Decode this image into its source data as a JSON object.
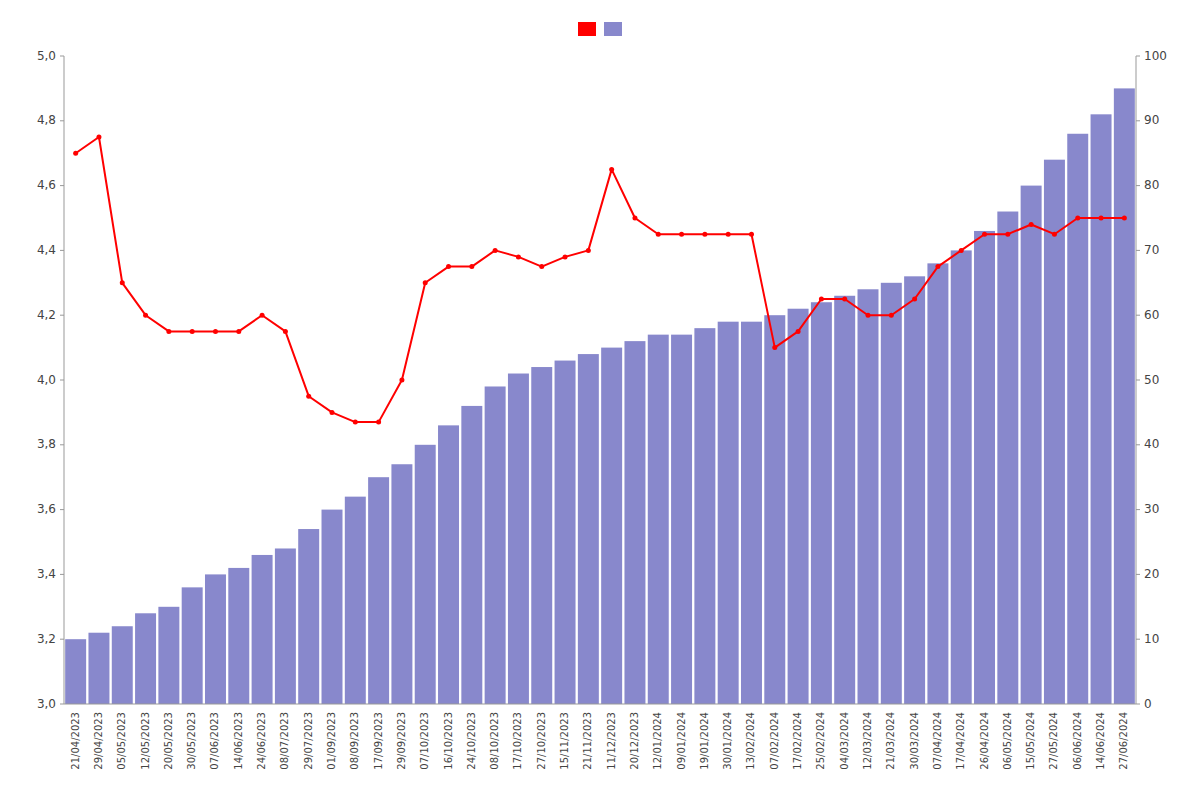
{
  "chart_data": {
    "type": "combo",
    "categories": [
      "21/04/2023",
      "29/04/2023",
      "05/05/2023",
      "12/05/2023",
      "20/05/2023",
      "30/05/2023",
      "07/06/2023",
      "14/06/2023",
      "24/06/2023",
      "08/07/2023",
      "29/07/2023",
      "01/09/2023",
      "08/09/2023",
      "17/09/2023",
      "29/09/2023",
      "07/10/2023",
      "16/10/2023",
      "24/10/2023",
      "08/10/2023",
      "17/10/2023",
      "27/10/2023",
      "15/11/2023",
      "21/11/2023",
      "11/12/2023",
      "20/12/2023",
      "12/01/2024",
      "09/01/2024",
      "19/01/2024",
      "30/01/2024",
      "13/02/2024",
      "07/02/2024",
      "17/02/2024",
      "25/02/2024",
      "04/03/2024",
      "12/03/2024",
      "21/03/2024",
      "30/03/2024",
      "07/04/2024",
      "17/04/2024",
      "26/04/2024",
      "06/05/2024",
      "15/05/2024",
      "27/05/2024",
      "06/06/2024",
      "14/06/2024",
      "27/06/2024"
    ],
    "series": [
      {
        "type": "line",
        "color": "#ff0000",
        "marker": "circle",
        "values": [
          4.7,
          4.75,
          4.3,
          4.2,
          4.15,
          4.15,
          4.15,
          4.15,
          4.2,
          4.15,
          3.95,
          3.9,
          3.87,
          3.87,
          4.0,
          4.3,
          4.35,
          4.35,
          4.4,
          4.38,
          4.35,
          4.38,
          4.4,
          4.65,
          4.5,
          4.45,
          4.45,
          4.45,
          4.45,
          4.45,
          4.1,
          4.15,
          4.25,
          4.25,
          4.2,
          4.2,
          4.25,
          4.35,
          4.4,
          4.45,
          4.45,
          4.48,
          4.45,
          4.5,
          4.5,
          4.5
        ]
      },
      {
        "type": "bar",
        "color": "#8888cc",
        "axis": "y2",
        "values": [
          10,
          11,
          12,
          14,
          15,
          18,
          20,
          21,
          23,
          24,
          27,
          30,
          32,
          35,
          37,
          40,
          43,
          46,
          49,
          51,
          52,
          53,
          54,
          55,
          56,
          57,
          57,
          58,
          59,
          59,
          60,
          61,
          62,
          63,
          64,
          65,
          66,
          68,
          70,
          73,
          76,
          80,
          84,
          88,
          91,
          95
        ]
      }
    ],
    "ylim": [
      3.0,
      5.0
    ],
    "yticks": [
      {
        "value": 3.0,
        "label": "3,0"
      },
      {
        "value": 3.2,
        "label": "3,2"
      },
      {
        "value": 3.4,
        "label": "3,4"
      },
      {
        "value": 3.6,
        "label": "3,6"
      },
      {
        "value": 3.8,
        "label": "3,8"
      },
      {
        "value": 4.0,
        "label": "4,0"
      },
      {
        "value": 4.2,
        "label": "4,2"
      },
      {
        "value": 4.4,
        "label": "4,4"
      },
      {
        "value": 4.6,
        "label": "4,6"
      },
      {
        "value": 4.8,
        "label": "4,8"
      },
      {
        "value": 5.0,
        "label": "5,0"
      }
    ],
    "y2lim": [
      0,
      100
    ],
    "y2ticks": [
      0,
      10,
      20,
      30,
      40,
      50,
      60,
      70,
      80,
      90,
      100
    ],
    "grid": false,
    "legend": "top"
  }
}
